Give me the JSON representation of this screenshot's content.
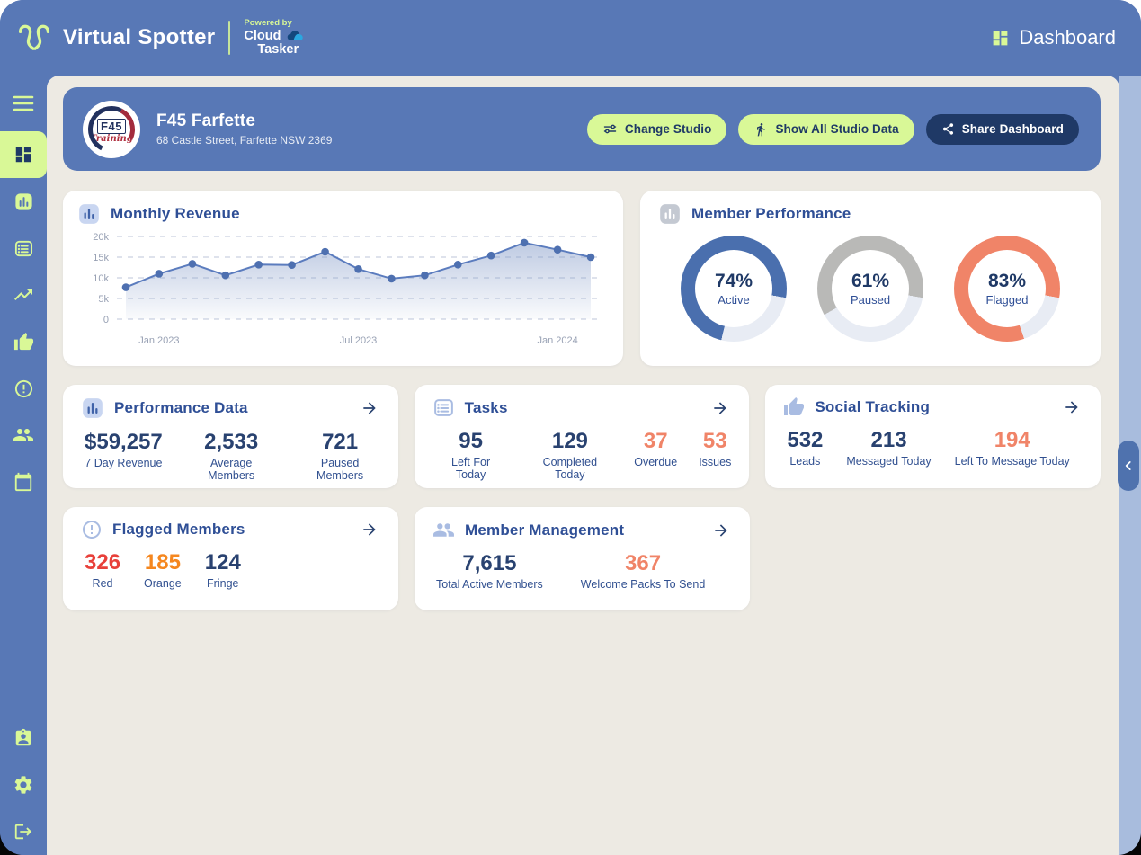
{
  "header": {
    "brand": "Virtual Spotter",
    "powered_by_label": "Powered by",
    "powered_brand": {
      "line1": "Cloud",
      "line2": "Tasker"
    },
    "page_title": "Dashboard"
  },
  "sidebar": {
    "top_icon": "menu-icon",
    "nav_icons": [
      {
        "name": "dashboard-icon",
        "active": true
      },
      {
        "name": "bar-chart-icon",
        "active": false
      },
      {
        "name": "list-icon",
        "active": false
      },
      {
        "name": "trending-up-icon",
        "active": false
      },
      {
        "name": "thumb-up-icon",
        "active": false
      },
      {
        "name": "alert-circle-icon",
        "active": false
      },
      {
        "name": "people-icon",
        "active": false
      },
      {
        "name": "calendar-icon",
        "active": false
      }
    ],
    "bottom_icons": [
      "id-badge-icon",
      "settings-icon",
      "logout-icon"
    ]
  },
  "studio_banner": {
    "logo": {
      "line1": "F45",
      "line2": "Training"
    },
    "name": "F45 Farfette",
    "address": "68 Castle Street, Farfette NSW 2369",
    "buttons": [
      {
        "label": "Change Studio",
        "icon": "sliders-icon",
        "style": "green"
      },
      {
        "label": "Show All Studio Data",
        "icon": "walking-person-icon",
        "style": "green"
      },
      {
        "label": "Share Dashboard",
        "icon": "share-icon",
        "style": "navy"
      }
    ]
  },
  "cards": {
    "monthly_revenue": {
      "title": "Monthly Revenue"
    },
    "member_performance": {
      "title": "Member Performance",
      "donuts": [
        {
          "pct": 74,
          "pct_label": "74%",
          "label": "Active",
          "color": "#4a6fae",
          "track": "#e8ecf4"
        },
        {
          "pct": 61,
          "pct_label": "61%",
          "label": "Paused",
          "color": "#b9b9b7",
          "track": "#e8ecf4"
        },
        {
          "pct": 83,
          "pct_label": "83%",
          "label": "Flagged",
          "color": "#f08468",
          "track": "#e8ecf4"
        }
      ]
    },
    "performance_data": {
      "title": "Performance Data",
      "stats": [
        {
          "value": "$59,257",
          "label": "7 Day Revenue",
          "color": "#294270"
        },
        {
          "value": "2,533",
          "label": "Average Members",
          "color": "#294270"
        },
        {
          "value": "721",
          "label": "Paused Members",
          "color": "#294270"
        }
      ]
    },
    "tasks": {
      "title": "Tasks",
      "stats": [
        {
          "value": "95",
          "label": "Left For Today",
          "color": "#294270"
        },
        {
          "value": "129",
          "label": "Completed Today",
          "color": "#294270"
        },
        {
          "value": "37",
          "label": "Overdue",
          "color": "#f08468"
        },
        {
          "value": "53",
          "label": "Issues",
          "color": "#f08468"
        }
      ]
    },
    "social_tracking": {
      "title": "Social Tracking",
      "stats": [
        {
          "value": "532",
          "label": "Leads",
          "color": "#294270"
        },
        {
          "value": "213",
          "label": "Messaged Today",
          "color": "#294270"
        },
        {
          "value": "194",
          "label": "Left To Message Today",
          "color": "#f08468"
        }
      ]
    },
    "flagged_members": {
      "title": "Flagged Members",
      "stats": [
        {
          "value": "326",
          "label": "Red",
          "color": "#e8403a"
        },
        {
          "value": "185",
          "label": "Orange",
          "color": "#f5871f"
        },
        {
          "value": "124",
          "label": "Fringe",
          "color": "#294270"
        }
      ]
    },
    "member_management": {
      "title": "Member Management",
      "stats": [
        {
          "value": "7,615",
          "label": "Total Active Members",
          "color": "#294270"
        },
        {
          "value": "367",
          "label": "Welcome Packs To Send",
          "color": "#f08468"
        }
      ]
    }
  },
  "chart_data": {
    "type": "area",
    "title": "Monthly Revenue",
    "x": [
      "Dec 2022",
      "Jan 2023",
      "Feb 2023",
      "Mar 2023",
      "Apr 2023",
      "May 2023",
      "Jun 2023",
      "Jul 2023",
      "Aug 2023",
      "Sep 2023",
      "Oct 2023",
      "Nov 2023",
      "Dec 2023",
      "Jan 2024",
      "Feb 2024"
    ],
    "values": [
      7700,
      11000,
      13400,
      10600,
      13200,
      13100,
      16300,
      12100,
      9800,
      10600,
      13200,
      15400,
      18500,
      16800,
      15000
    ],
    "ylim": [
      0,
      20000
    ],
    "y_ticks": [
      "0",
      "5k",
      "10k",
      "15k",
      "20k"
    ],
    "x_tick_labels": [
      {
        "index": 1,
        "label": "Jan 2023"
      },
      {
        "index": 7,
        "label": "Jul 2023"
      },
      {
        "index": 13,
        "label": "Jan 2024"
      }
    ],
    "grid": "dashed-horizontal",
    "legend": "none",
    "line_color": "#5b7cbe",
    "marker_color": "#4e70b0",
    "fill": "vertical-gradient"
  },
  "colors": {
    "primary_blue": "#5878b6",
    "accent_green": "#d9f897",
    "navy": "#1f3966",
    "title_blue": "#2f4f96",
    "coral": "#f08468",
    "background_cream": "#edeae3",
    "right_rail": "#a8bcdd"
  }
}
